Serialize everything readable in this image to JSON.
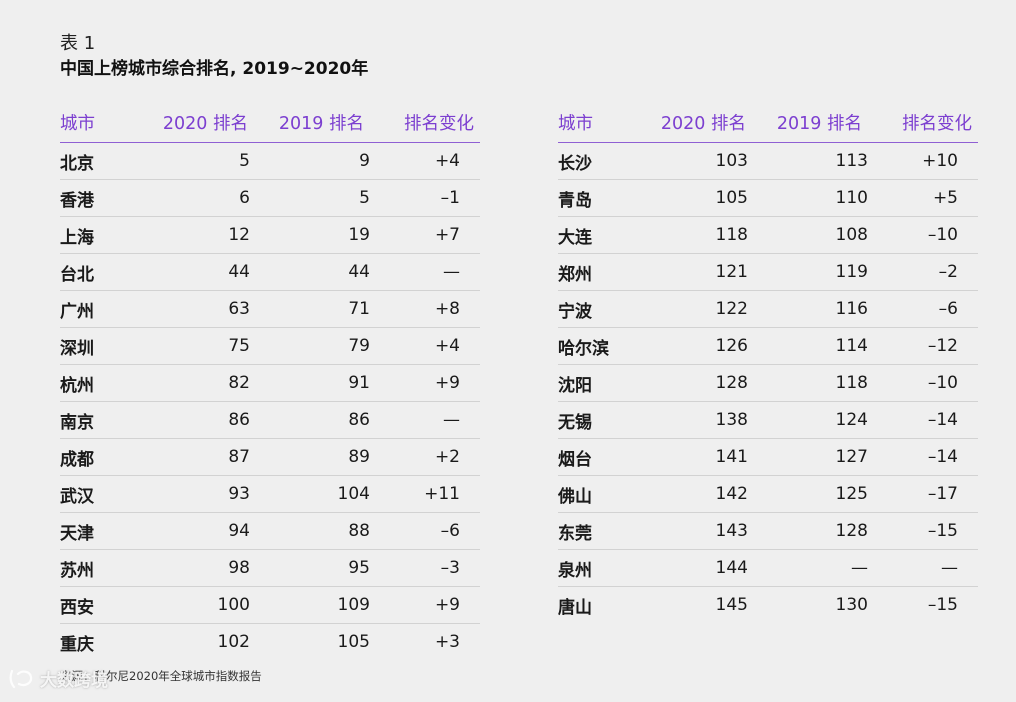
{
  "caption": "表 1",
  "title": "中国上榜城市综合排名, 2019~2020年",
  "headers": {
    "city": "城市",
    "rank2020": "2020 排名",
    "rank2019": "2019 排名",
    "change": "排名变化"
  },
  "left_rows": [
    {
      "city": "北京",
      "r2020": "5",
      "r2019": "9",
      "change": "+4"
    },
    {
      "city": "香港",
      "r2020": "6",
      "r2019": "5",
      "change": "–1"
    },
    {
      "city": "上海",
      "r2020": "12",
      "r2019": "19",
      "change": "+7"
    },
    {
      "city": "台北",
      "r2020": "44",
      "r2019": "44",
      "change": "—"
    },
    {
      "city": "广州",
      "r2020": "63",
      "r2019": "71",
      "change": "+8"
    },
    {
      "city": "深圳",
      "r2020": "75",
      "r2019": "79",
      "change": "+4"
    },
    {
      "city": "杭州",
      "r2020": "82",
      "r2019": "91",
      "change": "+9"
    },
    {
      "city": "南京",
      "r2020": "86",
      "r2019": "86",
      "change": "—"
    },
    {
      "city": "成都",
      "r2020": "87",
      "r2019": "89",
      "change": "+2"
    },
    {
      "city": "武汉",
      "r2020": "93",
      "r2019": "104",
      "change": "+11"
    },
    {
      "city": "天津",
      "r2020": "94",
      "r2019": "88",
      "change": "–6"
    },
    {
      "city": "苏州",
      "r2020": "98",
      "r2019": "95",
      "change": "–3"
    },
    {
      "city": "西安",
      "r2020": "100",
      "r2019": "109",
      "change": "+9"
    },
    {
      "city": "重庆",
      "r2020": "102",
      "r2019": "105",
      "change": "+3"
    }
  ],
  "right_rows": [
    {
      "city": "长沙",
      "r2020": "103",
      "r2019": "113",
      "change": "+10"
    },
    {
      "city": "青岛",
      "r2020": "105",
      "r2019": "110",
      "change": "+5"
    },
    {
      "city": "大连",
      "r2020": "118",
      "r2019": "108",
      "change": "–10"
    },
    {
      "city": "郑州",
      "r2020": "121",
      "r2019": "119",
      "change": "–2"
    },
    {
      "city": "宁波",
      "r2020": "122",
      "r2019": "116",
      "change": "–6"
    },
    {
      "city": "哈尔滨",
      "r2020": "126",
      "r2019": "114",
      "change": "–12"
    },
    {
      "city": "沈阳",
      "r2020": "128",
      "r2019": "118",
      "change": "–10"
    },
    {
      "city": "无锡",
      "r2020": "138",
      "r2019": "124",
      "change": "–14"
    },
    {
      "city": "烟台",
      "r2020": "141",
      "r2019": "127",
      "change": "–14"
    },
    {
      "city": "佛山",
      "r2020": "142",
      "r2019": "125",
      "change": "–17"
    },
    {
      "city": "东莞",
      "r2020": "143",
      "r2019": "128",
      "change": "–15"
    },
    {
      "city": "泉州",
      "r2020": "144",
      "r2019": "—",
      "change": "—"
    },
    {
      "city": "唐山",
      "r2020": "145",
      "r2019": "130",
      "change": "–15"
    }
  ],
  "source": "来源：科尔尼2020年全球城市指数报告",
  "watermark": "大数跨境",
  "colors": {
    "accent": "#7c3fd0",
    "background": "#efefef"
  }
}
